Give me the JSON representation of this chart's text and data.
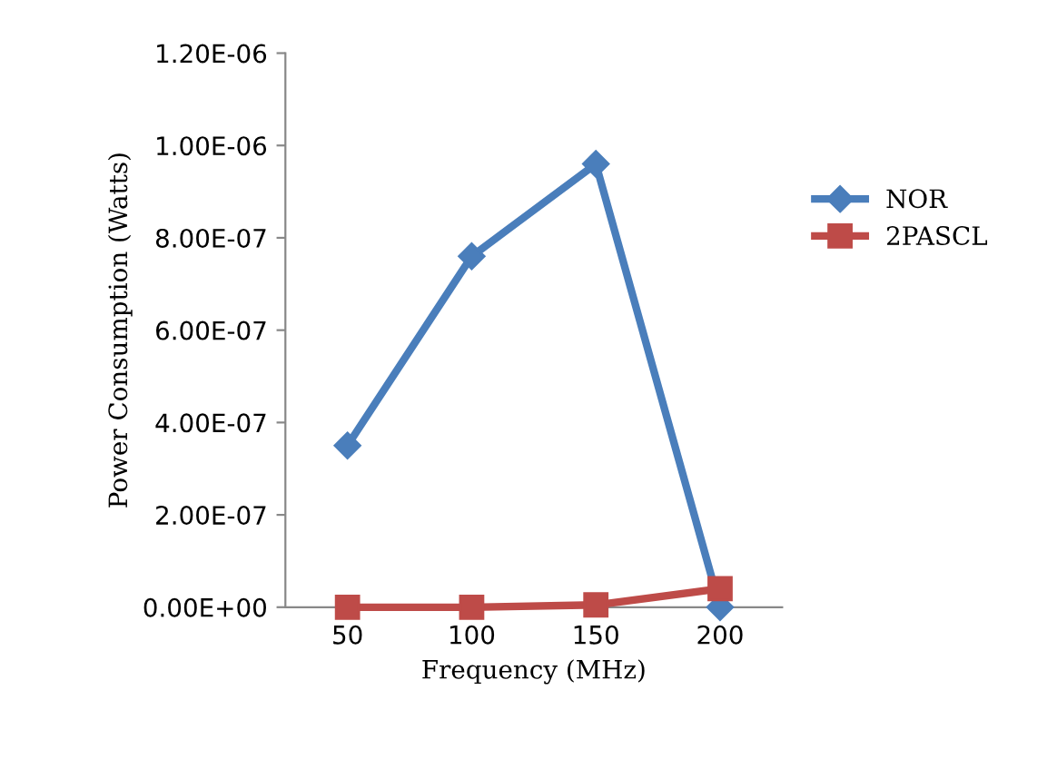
{
  "chart_data": {
    "type": "line",
    "xlabel": "Frequency (MHz)",
    "ylabel": "Power Consumption (Watts)",
    "categories": [
      "50",
      "100",
      "150",
      "200"
    ],
    "series": [
      {
        "name": "NOR",
        "color": "#4a7ebb",
        "marker": "diamond",
        "values": [
          3.5e-07,
          7.6e-07,
          9.6e-07,
          0
        ]
      },
      {
        "name": "2PASCL",
        "color": "#be4b48",
        "marker": "square",
        "values": [
          0,
          0,
          5e-09,
          4e-08
        ]
      }
    ],
    "ylim": [
      0,
      1.2e-06
    ],
    "yticks": [
      {
        "value": 0,
        "label": "0.00E+00"
      },
      {
        "value": 2e-07,
        "label": "2.00E-07"
      },
      {
        "value": 4e-07,
        "label": "4.00E-07"
      },
      {
        "value": 6e-07,
        "label": "6.00E-07"
      },
      {
        "value": 8e-07,
        "label": "8.00E-07"
      },
      {
        "value": 1e-06,
        "label": "1.00E-06"
      },
      {
        "value": 1.2e-06,
        "label": "1.20E-06"
      }
    ],
    "grid": false,
    "legend": "right",
    "line_style": "solid"
  }
}
